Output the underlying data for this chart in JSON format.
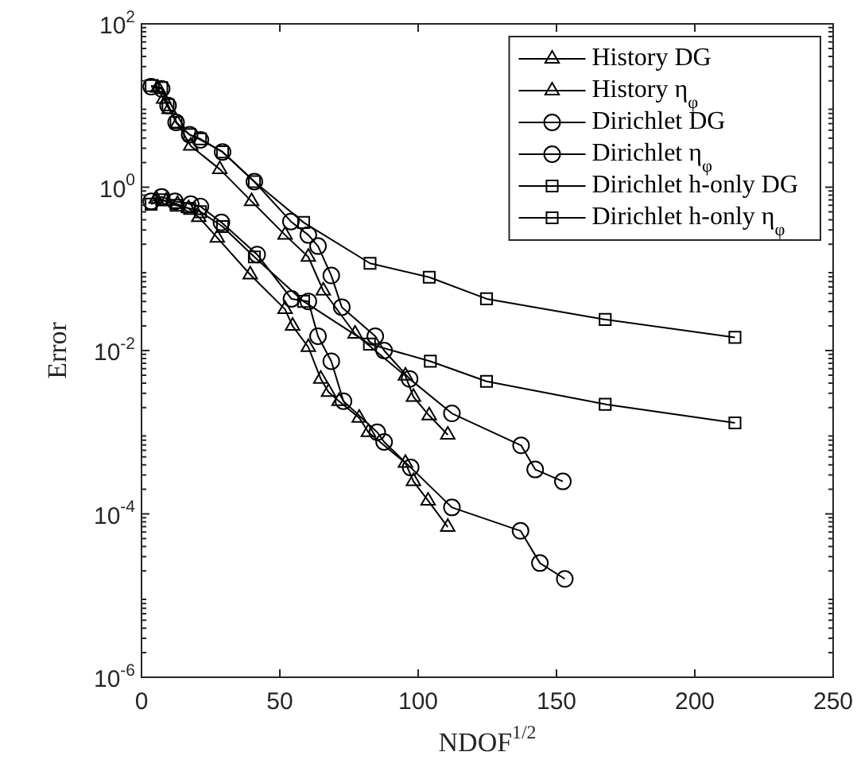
{
  "chart_data": {
    "type": "line",
    "xlabel": "NDOF$^{1/2}$",
    "ylabel": "Error",
    "log": "y",
    "grid": false,
    "legend": "top right",
    "line_style": "solid",
    "xlim": [
      0,
      250
    ],
    "xticks": [
      0,
      50,
      100,
      150,
      200,
      250
    ],
    "ylim": [
      1e-06,
      100
    ],
    "yticks": [
      {
        "value": 1e-06,
        "label": "10$^{-6}$"
      },
      {
        "value": 0.0001,
        "label": "10$^{-4}$"
      },
      {
        "value": 0.01,
        "label": "10$^{-2}$"
      },
      {
        "value": 1,
        "label": "10$^{0}$"
      },
      {
        "value": 100,
        "label": "10$^{2}$"
      }
    ],
    "series": [
      {
        "name": "History DG",
        "color": "#000000",
        "marker": "triangle",
        "x": [
          5.3,
          9,
          13,
          17,
          20.7,
          27.4,
          39.3,
          51.9,
          54.6,
          60.3,
          64.8,
          67.6,
          71.4,
          78.7,
          82,
          95.4,
          98.3,
          103.6,
          110.7
        ],
        "values": [
          0.72,
          0.68,
          0.62,
          0.55,
          0.43,
          0.24,
          0.085,
          0.032,
          0.02,
          0.011,
          0.0045,
          0.0031,
          0.0024,
          0.0015,
          0.001,
          0.00042,
          0.00025,
          0.000145,
          6.9e-05
        ]
      },
      {
        "name": "History η$_{φ}$",
        "color": "#000000",
        "marker": "triangle",
        "x": [
          5.9,
          8,
          10,
          13,
          17.8,
          28.3,
          39.8,
          51.9,
          60.3,
          65.7,
          77.2,
          95.4,
          98.3,
          104,
          110.7
        ],
        "values": [
          16.5,
          12,
          9,
          6,
          3.2,
          1.66,
          0.67,
          0.26,
          0.14,
          0.054,
          0.016,
          0.0049,
          0.0027,
          0.0016,
          0.00093
        ]
      },
      {
        "name": "Dirichlet DG",
        "color": "#000000",
        "marker": "circle",
        "x": [
          3.5,
          7.3,
          12.1,
          17.8,
          21.3,
          28.9,
          41.8,
          54.2,
          60.3,
          63.8,
          68.6,
          73,
          85.2,
          87.7,
          97.3,
          112.2,
          137,
          144,
          153
        ],
        "values": [
          0.67,
          0.76,
          0.67,
          0.62,
          0.58,
          0.37,
          0.15,
          0.043,
          0.04,
          0.015,
          0.0074,
          0.0024,
          0.001,
          0.00076,
          0.00037,
          0.00012,
          6.2e-05,
          2.5e-05,
          1.6e-05
        ]
      },
      {
        "name": "Dirichlet η$_{φ}$",
        "color": "#000000",
        "marker": "circle",
        "x": [
          3.5,
          7.3,
          9.6,
          12.5,
          17.4,
          21.3,
          29.3,
          40.8,
          54,
          60.3,
          63.8,
          68.6,
          72.4,
          84.5,
          87.7,
          96.9,
          112.2,
          137.2,
          142.3,
          152.3
        ],
        "values": [
          17,
          16,
          10,
          6.2,
          4.4,
          3.8,
          2.7,
          1.17,
          0.38,
          0.26,
          0.19,
          0.083,
          0.034,
          0.015,
          0.01,
          0.0045,
          0.0017,
          0.00069,
          0.00035,
          0.00025
        ]
      },
      {
        "name": "Dirichlet h-only DG",
        "color": "#000000",
        "marker": "square",
        "x": [
          3.5,
          7.3,
          12.5,
          17.4,
          21.3,
          29.3,
          40.8,
          58.6,
          82.4,
          104.4,
          124.7,
          167.6,
          214.5
        ],
        "values": [
          0.62,
          0.7,
          0.6,
          0.55,
          0.5,
          0.33,
          0.14,
          0.04,
          0.012,
          0.0074,
          0.0042,
          0.0022,
          0.0013
        ]
      },
      {
        "name": "Dirichlet h-only η$_{φ}$",
        "color": "#000000",
        "marker": "square",
        "x": [
          3.5,
          7.3,
          9.6,
          12.5,
          17.4,
          21.3,
          29.3,
          40.8,
          58.6,
          82.6,
          104,
          124.7,
          167.6,
          214.5
        ],
        "values": [
          17.5,
          16.5,
          10.2,
          6.2,
          4.4,
          3.9,
          2.7,
          1.17,
          0.37,
          0.117,
          0.079,
          0.043,
          0.024,
          0.0145
        ]
      }
    ]
  }
}
